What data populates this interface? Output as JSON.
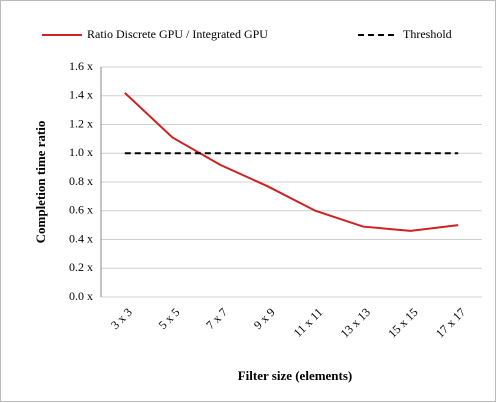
{
  "chart_data": {
    "type": "line",
    "x_label": "Filter size (elements)",
    "y_label": "Completion time ratio",
    "categories": [
      "3 x 3",
      "5 x 5",
      "7 x 7",
      "9 x 9",
      "11 x 11",
      "13 x 13",
      "15 x 15",
      "17 x 17"
    ],
    "series": [
      {
        "name": "Ratio Discrete GPU / Integrated GPU",
        "color": "#cc2222",
        "style": "solid",
        "values": [
          1.42,
          1.11,
          0.92,
          0.77,
          0.6,
          0.49,
          0.46,
          0.5
        ]
      },
      {
        "name": "Threshold",
        "color": "#000000",
        "style": "dashed",
        "values": [
          1.0,
          1.0,
          1.0,
          1.0,
          1.0,
          1.0,
          1.0,
          1.0
        ]
      }
    ],
    "ylim": [
      0,
      1.6
    ],
    "yticks": [
      {
        "value": 0,
        "label": "0.0 x"
      },
      {
        "value": 0.2,
        "label": "0.2 x"
      },
      {
        "value": 0.4,
        "label": "0.4 x"
      },
      {
        "value": 0.6,
        "label": "0.6 x"
      },
      {
        "value": 0.8,
        "label": "0.8 x"
      },
      {
        "value": 1.0,
        "label": "1.0 x"
      },
      {
        "value": 1.2,
        "label": "1.2 x"
      },
      {
        "value": 1.4,
        "label": "1.4 x"
      },
      {
        "value": 1.6,
        "label": "1.6 x"
      }
    ],
    "grid": true,
    "legend": "top"
  }
}
